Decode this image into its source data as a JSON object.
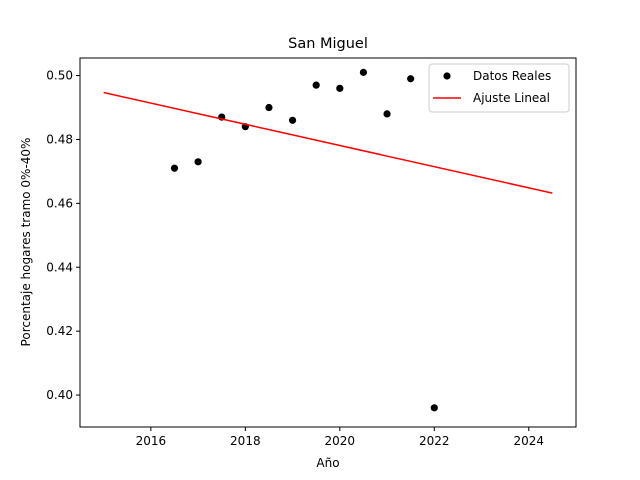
{
  "chart_data": {
    "type": "scatter",
    "title": "San Miguel",
    "xlabel": "Año",
    "ylabel": "Porcentaje hogares tramo 0%-40%",
    "xlim": [
      2014.5,
      2025.0
    ],
    "ylim": [
      0.39,
      0.5055
    ],
    "xticks": [
      2016,
      2018,
      2020,
      2022,
      2024
    ],
    "yticks": [
      0.4,
      0.42,
      0.44,
      0.46,
      0.48,
      0.5
    ],
    "grid": false,
    "legend_position": "top-right",
    "series": [
      {
        "name": "Datos Reales",
        "kind": "scatter",
        "color": "#000000",
        "x": [
          2016.5,
          2017.0,
          2017.5,
          2018.0,
          2018.5,
          2019.0,
          2019.5,
          2020.0,
          2020.5,
          2021.0,
          2021.5,
          2022.0
        ],
        "y": [
          0.471,
          0.473,
          0.487,
          0.484,
          0.49,
          0.486,
          0.497,
          0.496,
          0.501,
          0.488,
          0.499,
          0.396
        ]
      },
      {
        "name": "Ajuste Lineal",
        "kind": "line",
        "color": "#ff0000",
        "x": [
          2015.0,
          2024.5
        ],
        "y": [
          0.4947,
          0.4632
        ]
      }
    ]
  }
}
